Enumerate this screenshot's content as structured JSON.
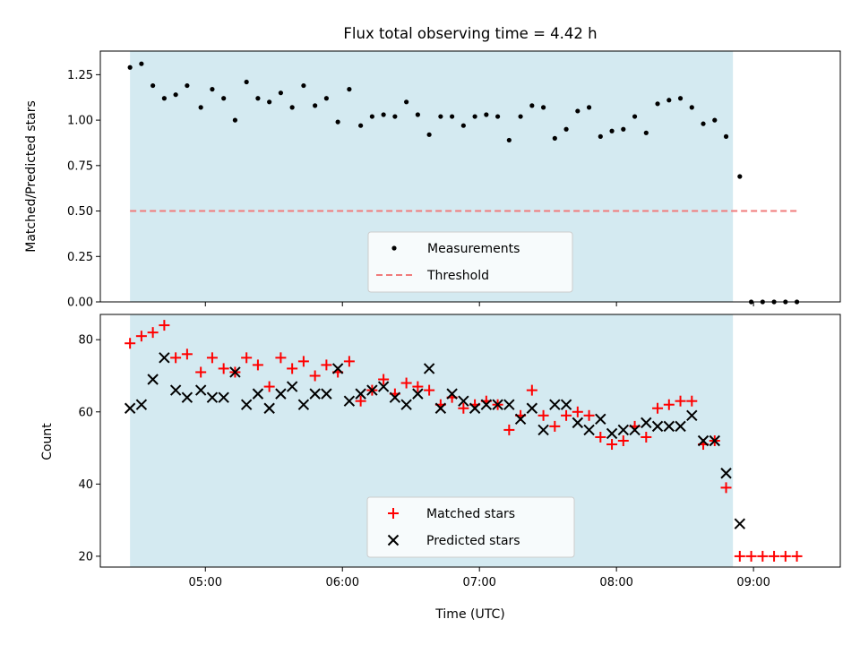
{
  "chart_data": [
    {
      "type": "scatter",
      "title": "Flux total observing time = 4.42 h",
      "xlabel": "",
      "ylabel": "Matched/Predicted stars",
      "ylim": [
        0,
        1.38
      ],
      "xlim": [
        "04:14",
        "09:38"
      ],
      "y_ticks": [
        "0.00",
        "0.25",
        "0.50",
        "0.75",
        "1.00",
        "1.25"
      ],
      "grid": false,
      "legend_placement": "lower-center",
      "shaded_region": {
        "x_start": "04:27",
        "x_end": "08:51",
        "color": "#d4eaf1"
      },
      "series": [
        {
          "name": "Measurements",
          "marker": "dot",
          "color": "#000000",
          "x": [
            "04:27",
            "04:32",
            "04:37",
            "04:42",
            "04:47",
            "04:52",
            "04:58",
            "05:03",
            "05:08",
            "05:13",
            "05:18",
            "05:23",
            "05:28",
            "05:33",
            "05:38",
            "05:43",
            "05:48",
            "05:53",
            "05:58",
            "06:03",
            "06:08",
            "06:13",
            "06:18",
            "06:23",
            "06:28",
            "06:33",
            "06:38",
            "06:43",
            "06:48",
            "06:53",
            "06:58",
            "07:03",
            "07:08",
            "07:13",
            "07:18",
            "07:23",
            "07:28",
            "07:33",
            "07:38",
            "07:43",
            "07:48",
            "07:53",
            "07:58",
            "08:03",
            "08:08",
            "08:13",
            "08:18",
            "08:23",
            "08:28",
            "08:33",
            "08:38",
            "08:43",
            "08:48",
            "08:54",
            "08:59",
            "09:04",
            "09:09",
            "09:14",
            "09:19"
          ],
          "y": [
            1.29,
            1.31,
            1.19,
            1.12,
            1.14,
            1.19,
            1.07,
            1.17,
            1.12,
            1.0,
            1.21,
            1.12,
            1.1,
            1.15,
            1.07,
            1.19,
            1.08,
            1.12,
            0.99,
            1.17,
            0.97,
            1.02,
            1.03,
            1.02,
            1.1,
            1.03,
            0.92,
            1.02,
            1.02,
            0.97,
            1.02,
            1.03,
            1.02,
            0.89,
            1.02,
            1.08,
            1.07,
            0.9,
            0.95,
            1.05,
            1.07,
            0.91,
            0.94,
            0.95,
            1.02,
            0.93,
            1.09,
            1.11,
            1.12,
            1.07,
            0.98,
            1.0,
            0.91,
            0.69,
            0.0,
            0.0,
            0.0,
            0.0,
            0.0
          ]
        },
        {
          "name": "Threshold",
          "marker": "dashed-line",
          "color": "#f07b7b",
          "x": [
            "04:27",
            "09:19"
          ],
          "y": [
            0.5,
            0.5
          ]
        }
      ]
    },
    {
      "type": "scatter",
      "title": "",
      "xlabel": "Time (UTC)",
      "ylabel": "Count",
      "ylim": [
        17,
        87
      ],
      "xlim": [
        "04:14",
        "09:38"
      ],
      "x_ticks": [
        "05:00",
        "06:00",
        "07:00",
        "08:00",
        "09:00"
      ],
      "y_ticks": [
        "20",
        "40",
        "60",
        "80"
      ],
      "grid": false,
      "legend_placement": "lower-center",
      "shaded_region": {
        "x_start": "04:27",
        "x_end": "08:51",
        "color": "#d4eaf1"
      },
      "series": [
        {
          "name": "Matched stars",
          "marker": "plus",
          "color": "#ff0000",
          "x": [
            "04:27",
            "04:32",
            "04:37",
            "04:42",
            "04:47",
            "04:52",
            "04:58",
            "05:03",
            "05:08",
            "05:13",
            "05:18",
            "05:23",
            "05:28",
            "05:33",
            "05:38",
            "05:43",
            "05:48",
            "05:53",
            "05:58",
            "06:03",
            "06:08",
            "06:13",
            "06:18",
            "06:23",
            "06:28",
            "06:33",
            "06:38",
            "06:43",
            "06:48",
            "06:53",
            "06:58",
            "07:03",
            "07:08",
            "07:13",
            "07:18",
            "07:23",
            "07:28",
            "07:33",
            "07:38",
            "07:43",
            "07:48",
            "07:53",
            "07:58",
            "08:03",
            "08:08",
            "08:13",
            "08:18",
            "08:23",
            "08:28",
            "08:33",
            "08:38",
            "08:43",
            "08:48",
            "08:54",
            "08:59",
            "09:04",
            "09:09",
            "09:14",
            "09:19"
          ],
          "y": [
            79,
            81,
            82,
            84,
            75,
            76,
            71,
            75,
            72,
            71,
            75,
            73,
            67,
            75,
            72,
            74,
            70,
            73,
            71,
            74,
            63,
            66,
            69,
            65,
            68,
            67,
            66,
            62,
            64,
            61,
            62,
            63,
            62,
            55,
            59,
            66,
            59,
            56,
            59,
            60,
            59,
            53,
            51,
            52,
            56,
            53,
            61,
            62,
            63,
            63,
            51,
            52,
            39,
            20,
            20,
            20,
            20,
            20,
            20
          ]
        },
        {
          "name": "Predicted stars",
          "marker": "x",
          "color": "#000000",
          "x": [
            "04:27",
            "04:32",
            "04:37",
            "04:42",
            "04:47",
            "04:52",
            "04:58",
            "05:03",
            "05:08",
            "05:13",
            "05:18",
            "05:23",
            "05:28",
            "05:33",
            "05:38",
            "05:43",
            "05:48",
            "05:53",
            "05:58",
            "06:03",
            "06:08",
            "06:13",
            "06:18",
            "06:23",
            "06:28",
            "06:33",
            "06:38",
            "06:43",
            "06:48",
            "06:53",
            "06:58",
            "07:03",
            "07:08",
            "07:13",
            "07:18",
            "07:23",
            "07:28",
            "07:33",
            "07:38",
            "07:43",
            "07:48",
            "07:53",
            "07:58",
            "08:03",
            "08:08",
            "08:13",
            "08:18",
            "08:23",
            "08:28",
            "08:33",
            "08:38",
            "08:43",
            "08:48",
            "08:54"
          ],
          "y": [
            61,
            62,
            69,
            75,
            66,
            64,
            66,
            64,
            64,
            71,
            62,
            65,
            61,
            65,
            67,
            62,
            65,
            65,
            72,
            63,
            65,
            66,
            67,
            64,
            62,
            65,
            72,
            61,
            65,
            63,
            61,
            62,
            62,
            62,
            58,
            61,
            55,
            62,
            62,
            57,
            55,
            58,
            54,
            55,
            55,
            57,
            56,
            56,
            56,
            59,
            52,
            52,
            43,
            29
          ]
        }
      ]
    }
  ]
}
